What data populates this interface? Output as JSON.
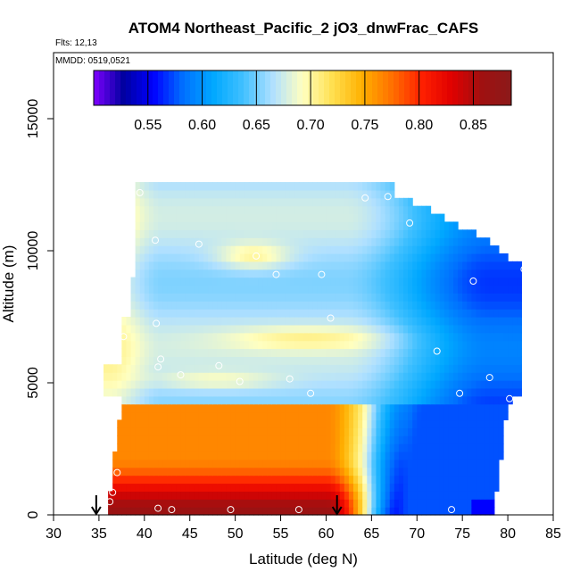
{
  "chart_data": {
    "type": "heatmap",
    "title": "ATOM4 Northeast_Pacific_2 jO3_dnwFrac_CAFS",
    "flights_label": "Flts: 12,13",
    "dates_label": "MMDD: 0519,0521",
    "xlabel": "Latitude (deg N)",
    "ylabel": "Altitude (m)",
    "xlim": [
      30,
      85
    ],
    "ylim": [
      0,
      17500
    ],
    "xticks": [
      "30",
      "35",
      "40",
      "45",
      "50",
      "55",
      "60",
      "65",
      "70",
      "75",
      "80",
      "85"
    ],
    "yticks": [
      "0",
      "5000",
      "10000",
      "15000"
    ],
    "colorbar": {
      "range": [
        0.5,
        0.885
      ],
      "tick_values": [
        0.55,
        0.6,
        0.65,
        0.7,
        0.75,
        0.8,
        0.85
      ],
      "tick_labels": [
        "0.55",
        "0.60",
        "0.65",
        "0.70",
        "0.75",
        "0.80",
        "0.85"
      ],
      "colors": [
        "#7f00ff",
        "#0000a0",
        "#0000ff",
        "#0070ff",
        "#00a8ff",
        "#40c0ff",
        "#b0e0ff",
        "#ffffc0",
        "#ffe050",
        "#ffb000",
        "#ff7000",
        "#ff2000",
        "#e00000",
        "#a01010",
        "#8b1a1a"
      ]
    },
    "field_summary": {
      "latitude_extent": [
        35.5,
        81.5
      ],
      "altitude_extent": [
        0,
        12500
      ],
      "bands": [
        {
          "alt_range": [
            0,
            800
          ],
          "west_value": 0.86,
          "east_value": 0.56
        },
        {
          "alt_range": [
            800,
            4300
          ],
          "west_value": 0.78,
          "east_value": 0.6
        },
        {
          "alt_range": [
            4300,
            12500
          ],
          "west_value": 0.69,
          "east_value": 0.56
        }
      ]
    },
    "sample_points": [
      {
        "lat": 36.2,
        "alt": 500
      },
      {
        "lat": 36.5,
        "alt": 850
      },
      {
        "lat": 37.0,
        "alt": 1600
      },
      {
        "lat": 41.5,
        "alt": 250
      },
      {
        "lat": 43.0,
        "alt": 200
      },
      {
        "lat": 49.5,
        "alt": 200
      },
      {
        "lat": 57.0,
        "alt": 200
      },
      {
        "lat": 73.8,
        "alt": 200
      },
      {
        "lat": 79.0,
        "alt": 200
      },
      {
        "lat": 35.5,
        "alt": 4100
      },
      {
        "lat": 41.5,
        "alt": 5600
      },
      {
        "lat": 41.8,
        "alt": 5900
      },
      {
        "lat": 44.0,
        "alt": 5300
      },
      {
        "lat": 48.2,
        "alt": 5650
      },
      {
        "lat": 50.5,
        "alt": 5050
      },
      {
        "lat": 56.0,
        "alt": 5150
      },
      {
        "lat": 58.3,
        "alt": 4600
      },
      {
        "lat": 74.7,
        "alt": 4600
      },
      {
        "lat": 78.0,
        "alt": 5200
      },
      {
        "lat": 80.2,
        "alt": 4400
      },
      {
        "lat": 37.7,
        "alt": 6750
      },
      {
        "lat": 41.3,
        "alt": 7250
      },
      {
        "lat": 60.5,
        "alt": 7450
      },
      {
        "lat": 72.2,
        "alt": 6200
      },
      {
        "lat": 41.2,
        "alt": 10400
      },
      {
        "lat": 46.0,
        "alt": 10250
      },
      {
        "lat": 52.3,
        "alt": 9800
      },
      {
        "lat": 54.5,
        "alt": 9100
      },
      {
        "lat": 59.5,
        "alt": 9100
      },
      {
        "lat": 76.2,
        "alt": 8850
      },
      {
        "lat": 81.8,
        "alt": 9300
      },
      {
        "lat": 39.5,
        "alt": 12200
      },
      {
        "lat": 64.3,
        "alt": 12000
      },
      {
        "lat": 66.8,
        "alt": 12050
      },
      {
        "lat": 69.2,
        "alt": 11050
      }
    ],
    "markers": [
      {
        "symbol": "down-arrow",
        "lat": 34.7
      },
      {
        "symbol": "down-arrow",
        "lat": 61.2
      }
    ]
  }
}
